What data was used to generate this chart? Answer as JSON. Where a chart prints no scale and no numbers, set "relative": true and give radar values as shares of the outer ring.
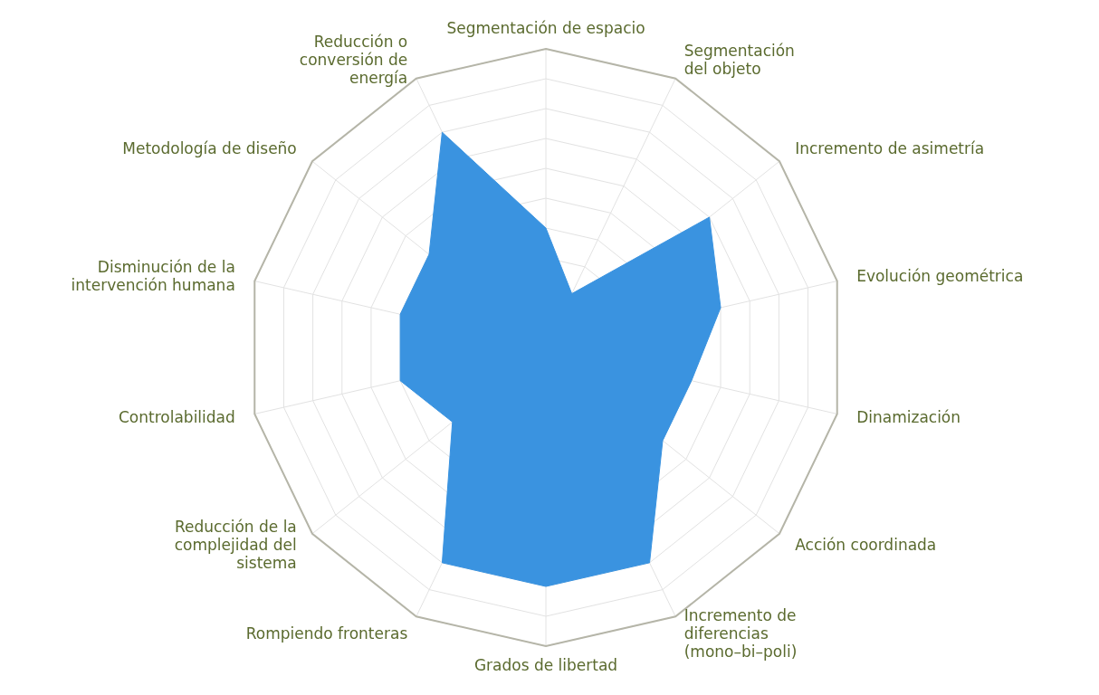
{
  "chart_data": {
    "type": "radar",
    "relative": true,
    "categories": [
      "Segmentación de espacio",
      "Segmentación del objeto",
      "Incremento de asimetría",
      "Evolución geométrica",
      "Dinamización",
      "Acción coordinada",
      "Incremento de diferencias (mono–bi–poli)",
      "Grados de libertad",
      "Rompiendo fronteras",
      "Reducción de la complejidad del sistema",
      "Controlabilidad",
      "Disminución de la intervención humana",
      "Metodología de diseño",
      "Reducción o conversión de energía"
    ],
    "series": [
      {
        "color": "#3a93e0",
        "values": [
          0.4,
          0.2,
          0.7,
          0.6,
          0.5,
          0.5,
          0.8,
          0.8,
          0.8,
          0.4,
          0.5,
          0.5,
          0.5,
          0.8
        ]
      }
    ],
    "grid": true,
    "legend": false
  }
}
